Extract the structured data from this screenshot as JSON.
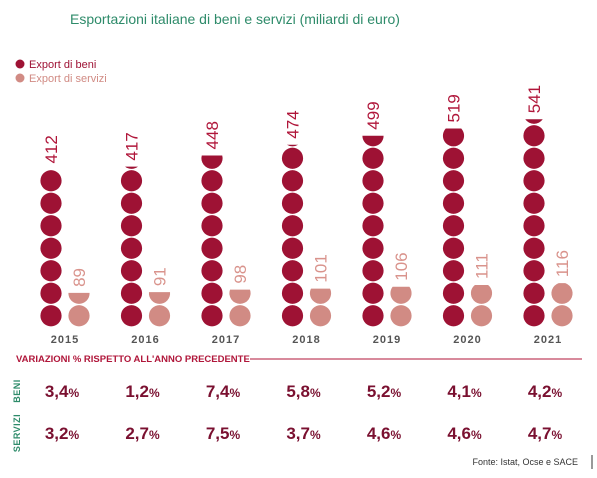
{
  "title": "Esportazioni italiane di beni e servizi (miliardi di euro)",
  "legend": [
    {
      "label": "Export di beni",
      "color": "#9e1234"
    },
    {
      "label": "Export di servizi",
      "color": "#d18b84"
    }
  ],
  "chart_data": {
    "type": "bar",
    "title": "Esportazioni italiane di beni e servizi (miliardi di euro)",
    "categories": [
      "2015",
      "2016",
      "2017",
      "2018",
      "2019",
      "2020",
      "2021"
    ],
    "series": [
      {
        "name": "Export di beni",
        "values": [
          412,
          417,
          448,
          474,
          499,
          519,
          541
        ]
      },
      {
        "name": "Export di servizi",
        "values": [
          89,
          91,
          98,
          101,
          106,
          111,
          116
        ]
      }
    ],
    "ylabel": "",
    "xlabel": ""
  },
  "variations": {
    "title": "VARIAZIONI % RISPETTO ALL'ANNO PRECEDENTE",
    "rows": [
      {
        "label": "BENI",
        "values": [
          "3,4",
          "1,2",
          "7,4",
          "5,8",
          "5,2",
          "4,1",
          "4,2"
        ]
      },
      {
        "label": "SERVIZI",
        "values": [
          "3,2",
          "2,7",
          "7,5",
          "3,7",
          "4,6",
          "4,6",
          "4,7"
        ]
      }
    ],
    "unit": "%"
  },
  "source": "Fonte: Istat, Ocse e SACE"
}
